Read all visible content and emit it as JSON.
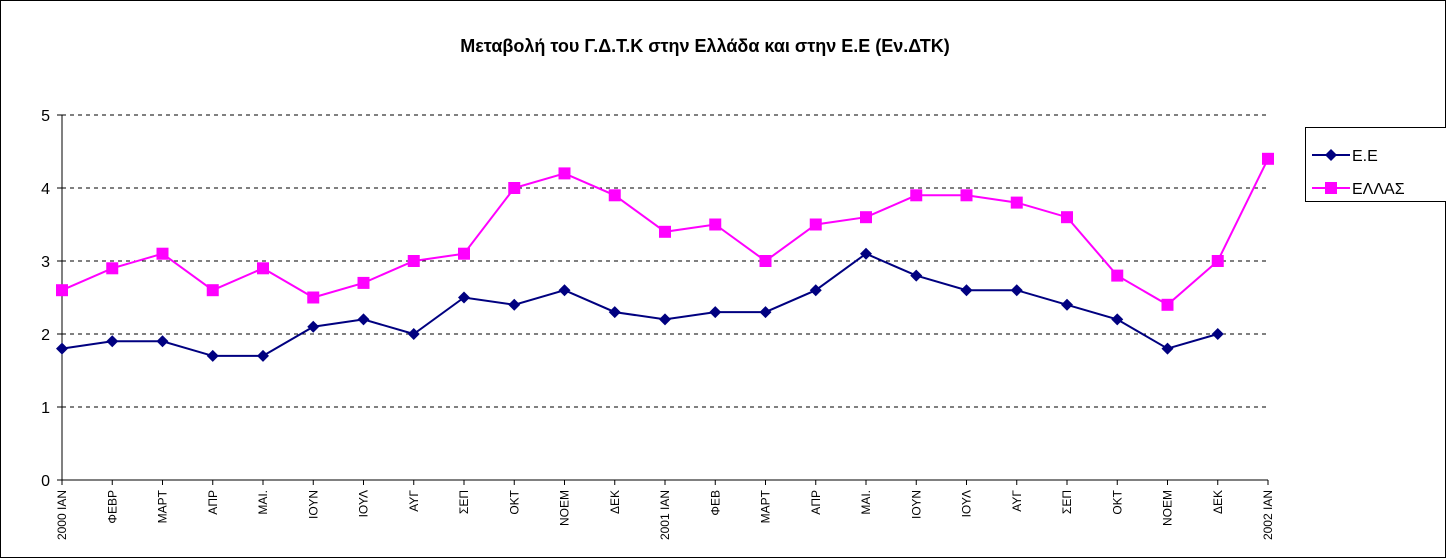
{
  "chart_data": {
    "type": "line",
    "title": "Μεταβολή του Γ.Δ.Τ.Κ στην Ελλάδα και στην Ε.Ε (Εν.ΔΤΚ)",
    "categories": [
      "2000 ΙΑΝ",
      "ΦΕΒΡ",
      "ΜΑΡΤ",
      "ΑΠΡ",
      "ΜΑΙ.",
      "ΙΟΥΝ",
      "ΙΟΥΛ",
      "ΑΥΓ",
      "ΣΕΠ",
      "ΟΚΤ",
      "ΝΟΕΜ",
      "ΔΕΚ",
      "2001 ΙΑΝ",
      "ΦΕΒ",
      "ΜΑΡΤ",
      "ΑΠΡ",
      "ΜΑΙ.",
      "ΙΟΥΝ",
      "ΙΟΥΛ",
      "ΑΥΓ",
      "ΣΕΠ",
      "ΟΚΤ",
      "ΝΟΕΜ",
      "ΔΕΚ",
      "2002 ΙΑΝ"
    ],
    "series": [
      {
        "name": "Ε.Ε",
        "color": "#000080",
        "marker": "diamond",
        "values": [
          1.8,
          1.9,
          1.9,
          1.7,
          1.7,
          2.1,
          2.2,
          2.0,
          2.5,
          2.4,
          2.6,
          2.3,
          2.2,
          2.3,
          2.3,
          2.6,
          3.1,
          2.8,
          2.6,
          2.6,
          2.4,
          2.2,
          1.8,
          2.0,
          null
        ]
      },
      {
        "name": "ΕΛΛΑΣ",
        "color": "#ff00ff",
        "marker": "square",
        "values": [
          2.6,
          2.9,
          3.1,
          2.6,
          2.9,
          2.5,
          2.7,
          3.0,
          3.1,
          4.0,
          4.2,
          3.9,
          3.4,
          3.5,
          3.0,
          3.5,
          3.6,
          3.9,
          3.9,
          3.8,
          3.6,
          2.8,
          2.4,
          3.0,
          4.4
        ]
      }
    ],
    "ylim": [
      0,
      5
    ],
    "yticks": [
      0,
      1,
      2,
      3,
      4,
      5
    ],
    "grid": true,
    "legend": "right"
  }
}
